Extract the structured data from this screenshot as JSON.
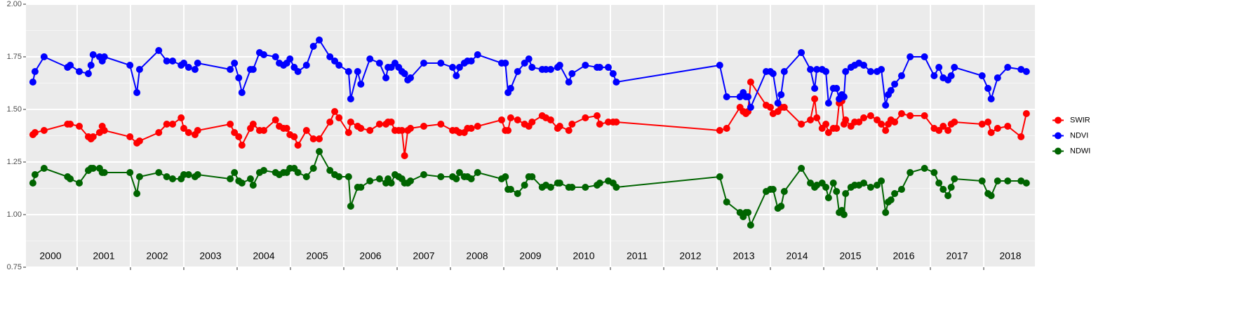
{
  "chart_data": {
    "type": "line",
    "x": [
      2000.17,
      2000.21,
      2000.38,
      2000.82,
      2000.87,
      2001.04,
      2001.21,
      2001.26,
      2001.3,
      2001.42,
      2001.47,
      2001.51,
      2001.99,
      2002.12,
      2002.17,
      2002.53,
      2002.68,
      2002.79,
      2002.95,
      2003.0,
      2003.09,
      2003.21,
      2003.26,
      2003.87,
      2003.95,
      2004.03,
      2004.09,
      2004.25,
      2004.3,
      2004.42,
      2004.5,
      2004.72,
      2004.79,
      2004.87,
      2004.93,
      2004.99,
      2005.07,
      2005.14,
      2005.3,
      2005.43,
      2005.54,
      2005.74,
      2005.83,
      2005.91,
      2006.09,
      2006.13,
      2006.26,
      2006.32,
      2006.49,
      2006.67,
      2006.79,
      2006.83,
      2006.89,
      2006.96,
      2007.03,
      2007.09,
      2007.14,
      2007.2,
      2007.25,
      2007.5,
      2007.82,
      2008.04,
      2008.11,
      2008.17,
      2008.26,
      2008.32,
      2008.39,
      2008.51,
      2008.96,
      2009.03,
      2009.08,
      2009.13,
      2009.26,
      2009.39,
      2009.47,
      2009.53,
      2009.72,
      2009.79,
      2009.88,
      2010.01,
      2010.05,
      2010.22,
      2010.28,
      2010.53,
      2010.75,
      2010.8,
      2010.96,
      2011.05,
      2011.11,
      2013.05,
      2013.18,
      2013.43,
      2013.49,
      2013.54,
      2013.58,
      2013.63,
      2013.92,
      2014.0,
      2014.05,
      2014.14,
      2014.2,
      2014.26,
      2014.58,
      2014.75,
      2014.83,
      2014.87,
      2014.97,
      2015.04,
      2015.09,
      2015.18,
      2015.24,
      2015.29,
      2015.34,
      2015.38,
      2015.41,
      2015.51,
      2015.58,
      2015.66,
      2015.75,
      2015.88,
      2016.0,
      2016.08,
      2016.16,
      2016.21,
      2016.26,
      2016.33,
      2016.46,
      2016.62,
      2016.89,
      2017.07,
      2017.16,
      2017.24,
      2017.33,
      2017.39,
      2017.45,
      2017.97,
      2018.08,
      2018.14,
      2018.26,
      2018.45,
      2018.7,
      2018.8
    ],
    "series": [
      {
        "name": "SWIR",
        "color": "#ff0000",
        "values": [
          1.38,
          1.39,
          1.4,
          1.43,
          1.43,
          1.42,
          1.37,
          1.36,
          1.37,
          1.39,
          1.42,
          1.4,
          1.37,
          1.34,
          1.35,
          1.39,
          1.43,
          1.43,
          1.46,
          1.41,
          1.39,
          1.38,
          1.4,
          1.43,
          1.39,
          1.37,
          1.33,
          1.41,
          1.43,
          1.4,
          1.4,
          1.45,
          1.42,
          1.41,
          1.41,
          1.38,
          1.37,
          1.33,
          1.4,
          1.36,
          1.36,
          1.44,
          1.49,
          1.46,
          1.39,
          1.44,
          1.42,
          1.41,
          1.4,
          1.43,
          1.43,
          1.44,
          1.44,
          1.4,
          1.4,
          1.4,
          1.28,
          1.4,
          1.41,
          1.42,
          1.43,
          1.4,
          1.4,
          1.39,
          1.39,
          1.41,
          1.41,
          1.42,
          1.45,
          1.4,
          1.4,
          1.46,
          1.45,
          1.43,
          1.42,
          1.44,
          1.47,
          1.46,
          1.45,
          1.41,
          1.42,
          1.4,
          1.43,
          1.46,
          1.47,
          1.43,
          1.44,
          1.44,
          1.44,
          1.4,
          1.41,
          1.51,
          1.49,
          1.48,
          1.49,
          1.63,
          1.52,
          1.51,
          1.48,
          1.49,
          1.51,
          1.51,
          1.43,
          1.45,
          1.55,
          1.46,
          1.41,
          1.43,
          1.39,
          1.41,
          1.41,
          1.53,
          1.54,
          1.43,
          1.45,
          1.42,
          1.44,
          1.44,
          1.46,
          1.47,
          1.45,
          1.43,
          1.4,
          1.43,
          1.45,
          1.44,
          1.48,
          1.47,
          1.47,
          1.41,
          1.4,
          1.42,
          1.4,
          1.43,
          1.44,
          1.43,
          1.44,
          1.39,
          1.41,
          1.42,
          1.37,
          1.48
        ]
      },
      {
        "name": "NDVI",
        "color": "#0000ff",
        "values": [
          1.63,
          1.68,
          1.75,
          1.7,
          1.71,
          1.68,
          1.67,
          1.71,
          1.76,
          1.75,
          1.73,
          1.75,
          1.71,
          1.58,
          1.69,
          1.78,
          1.73,
          1.73,
          1.71,
          1.72,
          1.7,
          1.69,
          1.72,
          1.69,
          1.72,
          1.65,
          1.58,
          1.69,
          1.69,
          1.77,
          1.76,
          1.75,
          1.72,
          1.71,
          1.72,
          1.74,
          1.7,
          1.68,
          1.71,
          1.8,
          1.83,
          1.75,
          1.73,
          1.71,
          1.68,
          1.55,
          1.68,
          1.62,
          1.74,
          1.72,
          1.65,
          1.7,
          1.7,
          1.72,
          1.7,
          1.68,
          1.67,
          1.64,
          1.65,
          1.72,
          1.72,
          1.7,
          1.66,
          1.7,
          1.72,
          1.73,
          1.73,
          1.76,
          1.72,
          1.72,
          1.58,
          1.6,
          1.68,
          1.72,
          1.74,
          1.7,
          1.69,
          1.69,
          1.69,
          1.7,
          1.71,
          1.63,
          1.67,
          1.71,
          1.7,
          1.7,
          1.7,
          1.67,
          1.63,
          1.71,
          1.56,
          1.56,
          1.58,
          1.56,
          1.56,
          1.51,
          1.68,
          1.68,
          1.67,
          1.53,
          1.57,
          1.68,
          1.77,
          1.69,
          1.6,
          1.69,
          1.69,
          1.68,
          1.53,
          1.6,
          1.6,
          1.55,
          1.57,
          1.56,
          1.68,
          1.7,
          1.71,
          1.72,
          1.71,
          1.68,
          1.68,
          1.69,
          1.52,
          1.57,
          1.59,
          1.62,
          1.66,
          1.75,
          1.75,
          1.66,
          1.7,
          1.65,
          1.64,
          1.66,
          1.7,
          1.66,
          1.6,
          1.55,
          1.65,
          1.7,
          1.69,
          1.68
        ]
      },
      {
        "name": "NDWI",
        "color": "#006400",
        "values": [
          1.15,
          1.19,
          1.22,
          1.18,
          1.17,
          1.15,
          1.21,
          1.22,
          1.22,
          1.22,
          1.2,
          1.2,
          1.2,
          1.1,
          1.18,
          1.2,
          1.18,
          1.17,
          1.17,
          1.19,
          1.19,
          1.18,
          1.19,
          1.17,
          1.2,
          1.16,
          1.15,
          1.17,
          1.14,
          1.2,
          1.21,
          1.2,
          1.19,
          1.2,
          1.2,
          1.22,
          1.22,
          1.2,
          1.18,
          1.22,
          1.3,
          1.21,
          1.19,
          1.18,
          1.18,
          1.04,
          1.13,
          1.13,
          1.16,
          1.17,
          1.15,
          1.17,
          1.15,
          1.19,
          1.18,
          1.17,
          1.15,
          1.15,
          1.16,
          1.19,
          1.18,
          1.18,
          1.17,
          1.2,
          1.18,
          1.18,
          1.17,
          1.2,
          1.17,
          1.18,
          1.12,
          1.12,
          1.1,
          1.14,
          1.18,
          1.18,
          1.13,
          1.14,
          1.13,
          1.15,
          1.15,
          1.13,
          1.13,
          1.13,
          1.14,
          1.15,
          1.16,
          1.15,
          1.13,
          1.18,
          1.06,
          1.01,
          0.99,
          1.01,
          1.01,
          0.95,
          1.11,
          1.12,
          1.12,
          1.03,
          1.04,
          1.11,
          1.22,
          1.15,
          1.13,
          1.14,
          1.15,
          1.13,
          1.08,
          1.15,
          1.11,
          1.01,
          1.02,
          1.0,
          1.1,
          1.13,
          1.14,
          1.14,
          1.15,
          1.13,
          1.14,
          1.16,
          1.01,
          1.06,
          1.07,
          1.1,
          1.12,
          1.2,
          1.22,
          1.2,
          1.15,
          1.12,
          1.09,
          1.13,
          1.17,
          1.16,
          1.1,
          1.09,
          1.16,
          1.16,
          1.16,
          1.15
        ]
      }
    ],
    "xlim": [
      2000.04,
      2018.96
    ],
    "xticks": [
      2001,
      2002,
      2003,
      2004,
      2005,
      2006,
      2007,
      2008,
      2009,
      2010,
      2011,
      2012,
      2013,
      2014,
      2015,
      2016,
      2017,
      2018
    ],
    "ylim": [
      0.75,
      2.0
    ],
    "yticks": [
      {
        "value": 0.75,
        "label": "0.75"
      },
      {
        "value": 1,
        "label": "1.00"
      },
      {
        "value": 1.25,
        "label": "1.25"
      },
      {
        "value": 1.5,
        "label": "1.50"
      },
      {
        "value": 1.75,
        "label": "1.75"
      },
      {
        "value": 2,
        "label": "2.00"
      }
    ],
    "annotations": [
      {
        "text": "2000",
        "x": 2000.5
      },
      {
        "text": "2001",
        "x": 2001.5
      },
      {
        "text": "2002",
        "x": 2002.5
      },
      {
        "text": "2003",
        "x": 2003.5
      },
      {
        "text": "2004",
        "x": 2004.5
      },
      {
        "text": "2005",
        "x": 2005.5
      },
      {
        "text": "2006",
        "x": 2006.5
      },
      {
        "text": "2007",
        "x": 2007.5
      },
      {
        "text": "2008",
        "x": 2008.5
      },
      {
        "text": "2009",
        "x": 2009.5
      },
      {
        "text": "2010",
        "x": 2010.5
      },
      {
        "text": "2011",
        "x": 2011.5
      },
      {
        "text": "2012",
        "x": 2012.5
      },
      {
        "text": "2013",
        "x": 2013.5
      },
      {
        "text": "2014",
        "x": 2014.5
      },
      {
        "text": "2015",
        "x": 2015.5
      },
      {
        "text": "2016",
        "x": 2016.5
      },
      {
        "text": "2017",
        "x": 2017.5
      },
      {
        "text": "2018",
        "x": 2018.5
      }
    ],
    "grid": true,
    "legend": "right"
  }
}
